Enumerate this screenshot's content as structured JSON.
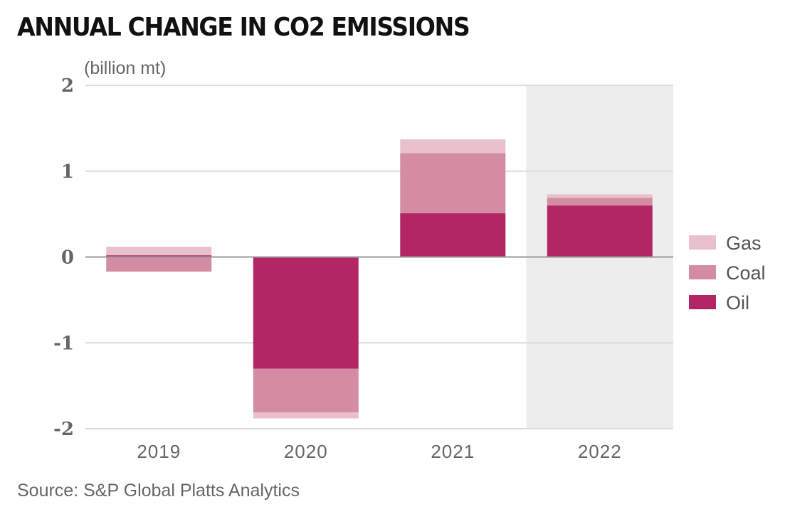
{
  "chart_data": {
    "type": "bar",
    "stacked": true,
    "title": "ANNUAL CHANGE IN CO2 EMISSIONS",
    "ylabel": "(billion mt)",
    "xlabel": "",
    "source": "Source: S&P Global Platts Analytics",
    "categories": [
      "2019",
      "2020",
      "2021",
      "2022"
    ],
    "highlighted_category": "2022",
    "ylim": [
      -2,
      2
    ],
    "yticks": [
      2,
      1,
      0,
      -1,
      -2
    ],
    "ytick_labels": [
      "2",
      "1",
      "0",
      "-1",
      "-2"
    ],
    "grid": true,
    "legend_position": "right",
    "series": [
      {
        "name": "Oil",
        "color": "#b22666",
        "values": [
          0.02,
          -1.3,
          0.51,
          0.6
        ]
      },
      {
        "name": "Coal",
        "color": "#d48ca3",
        "values": [
          -0.17,
          -0.51,
          0.7,
          0.09
        ]
      },
      {
        "name": "Gas",
        "color": "#e8c1cc",
        "values": [
          0.1,
          -0.07,
          0.16,
          0.04
        ]
      }
    ],
    "legend_order": [
      "Gas",
      "Coal",
      "Oil"
    ]
  },
  "colors": {
    "highlight_bg": "#ededed",
    "grid": "#dcdcdc",
    "zero_line": "#999999"
  }
}
